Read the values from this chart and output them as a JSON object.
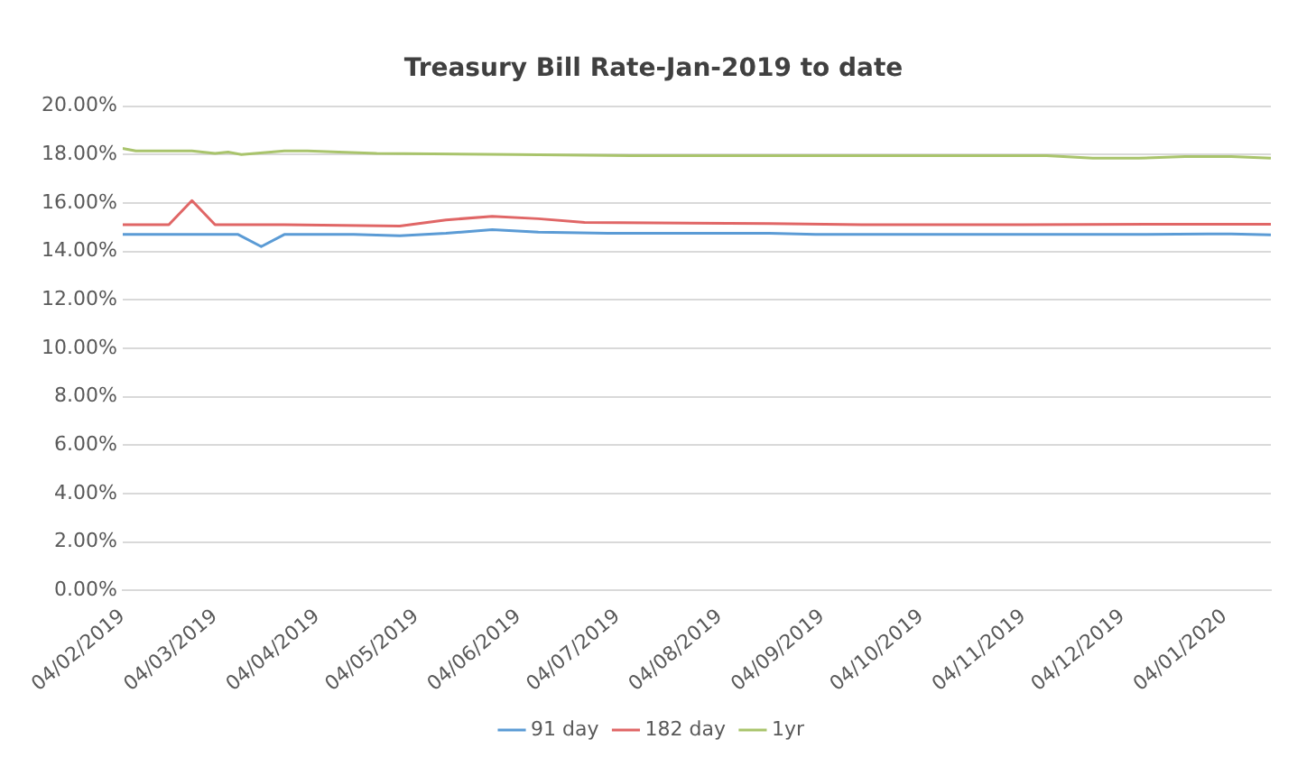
{
  "chart_data": {
    "type": "line",
    "title": "Treasury Bill Rate-Jan-2019 to date",
    "xlim": [
      "2019-02-04",
      "2020-01-18"
    ],
    "xticks": [
      {
        "value": "2019-02-04",
        "label": "04/02/2019"
      },
      {
        "value": "2019-03-04",
        "label": "04/03/2019"
      },
      {
        "value": "2019-04-04",
        "label": "04/04/2019"
      },
      {
        "value": "2019-05-04",
        "label": "04/05/2019"
      },
      {
        "value": "2019-06-04",
        "label": "04/06/2019"
      },
      {
        "value": "2019-07-04",
        "label": "04/07/2019"
      },
      {
        "value": "2019-08-04",
        "label": "04/08/2019"
      },
      {
        "value": "2019-09-04",
        "label": "04/09/2019"
      },
      {
        "value": "2019-10-04",
        "label": "04/10/2019"
      },
      {
        "value": "2019-11-04",
        "label": "04/11/2019"
      },
      {
        "value": "2019-12-04",
        "label": "04/12/2019"
      },
      {
        "value": "2020-01-04",
        "label": "04/01/2020"
      }
    ],
    "ylim": [
      0,
      20
    ],
    "yticks": [
      {
        "value": 0,
        "label": "0.00%"
      },
      {
        "value": 2,
        "label": "2.00%"
      },
      {
        "value": 4,
        "label": "4.00%"
      },
      {
        "value": 6,
        "label": "6.00%"
      },
      {
        "value": 8,
        "label": "8.00%"
      },
      {
        "value": 10,
        "label": "10.00%"
      },
      {
        "value": 12,
        "label": "12.00%"
      },
      {
        "value": 14,
        "label": "14.00%"
      },
      {
        "value": 16,
        "label": "16.00%"
      },
      {
        "value": 18,
        "label": "18.00%"
      },
      {
        "value": 20,
        "label": "20.00%"
      }
    ],
    "grid": "y",
    "legend": "bottom",
    "marker": "none",
    "line_style": "solid",
    "series": [
      {
        "name": "91 day",
        "color": "#5b9bd5",
        "x": [
          "2019-02-04",
          "2019-03-11",
          "2019-03-18",
          "2019-03-25",
          "2019-04-15",
          "2019-04-29",
          "2019-05-13",
          "2019-05-27",
          "2019-06-10",
          "2019-07-01",
          "2019-08-19",
          "2019-09-02",
          "2019-12-09",
          "2019-12-30",
          "2020-01-06",
          "2020-01-18"
        ],
        "values": [
          14.7,
          14.7,
          14.2,
          14.7,
          14.7,
          14.65,
          14.75,
          14.9,
          14.8,
          14.75,
          14.75,
          14.7,
          14.7,
          14.72,
          14.72,
          14.68
        ]
      },
      {
        "name": "182 day",
        "color": "#e06666",
        "x": [
          "2019-02-04",
          "2019-02-18",
          "2019-02-25",
          "2019-03-04",
          "2019-03-25",
          "2019-04-29",
          "2019-05-13",
          "2019-05-27",
          "2019-06-10",
          "2019-06-24",
          "2019-08-19",
          "2019-09-16",
          "2019-11-04",
          "2019-12-16",
          "2020-01-18"
        ],
        "values": [
          15.1,
          15.1,
          16.1,
          15.1,
          15.1,
          15.05,
          15.3,
          15.45,
          15.35,
          15.2,
          15.15,
          15.1,
          15.1,
          15.12,
          15.12
        ]
      },
      {
        "name": "1yr",
        "color": "#a9c46c",
        "x": [
          "2019-02-04",
          "2019-02-08",
          "2019-02-25",
          "2019-03-04",
          "2019-03-08",
          "2019-03-12",
          "2019-03-25",
          "2019-04-01",
          "2019-04-22",
          "2019-06-03",
          "2019-07-08",
          "2019-08-05",
          "2019-11-11",
          "2019-11-25",
          "2019-12-09",
          "2019-12-23",
          "2020-01-06",
          "2020-01-18"
        ],
        "values": [
          18.25,
          18.15,
          18.15,
          18.05,
          18.1,
          18.0,
          18.15,
          18.15,
          18.05,
          18.0,
          17.95,
          17.95,
          17.95,
          17.85,
          17.85,
          17.92,
          17.92,
          17.85
        ]
      }
    ]
  }
}
